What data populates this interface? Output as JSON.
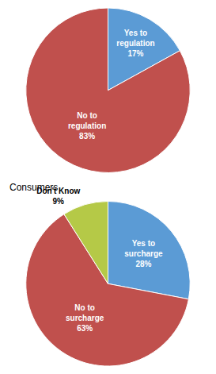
{
  "chart_data": [
    {
      "type": "pie",
      "categories": [
        "Yes to\nregulation\n17%",
        "No to\nregulation\n83%"
      ],
      "values": [
        17,
        83
      ],
      "colors": [
        "#5b9bd5",
        "#c0504d"
      ]
    },
    {
      "type": "pie",
      "title": "Consumers",
      "categories": [
        "Yes to\nsurcharge\n28%",
        "No to\nsurcharge\n63%",
        "Don't Know\n9%"
      ],
      "values": [
        28,
        63,
        9
      ],
      "colors": [
        "#5b9bd5",
        "#c0504d",
        "#b5c947"
      ]
    }
  ]
}
